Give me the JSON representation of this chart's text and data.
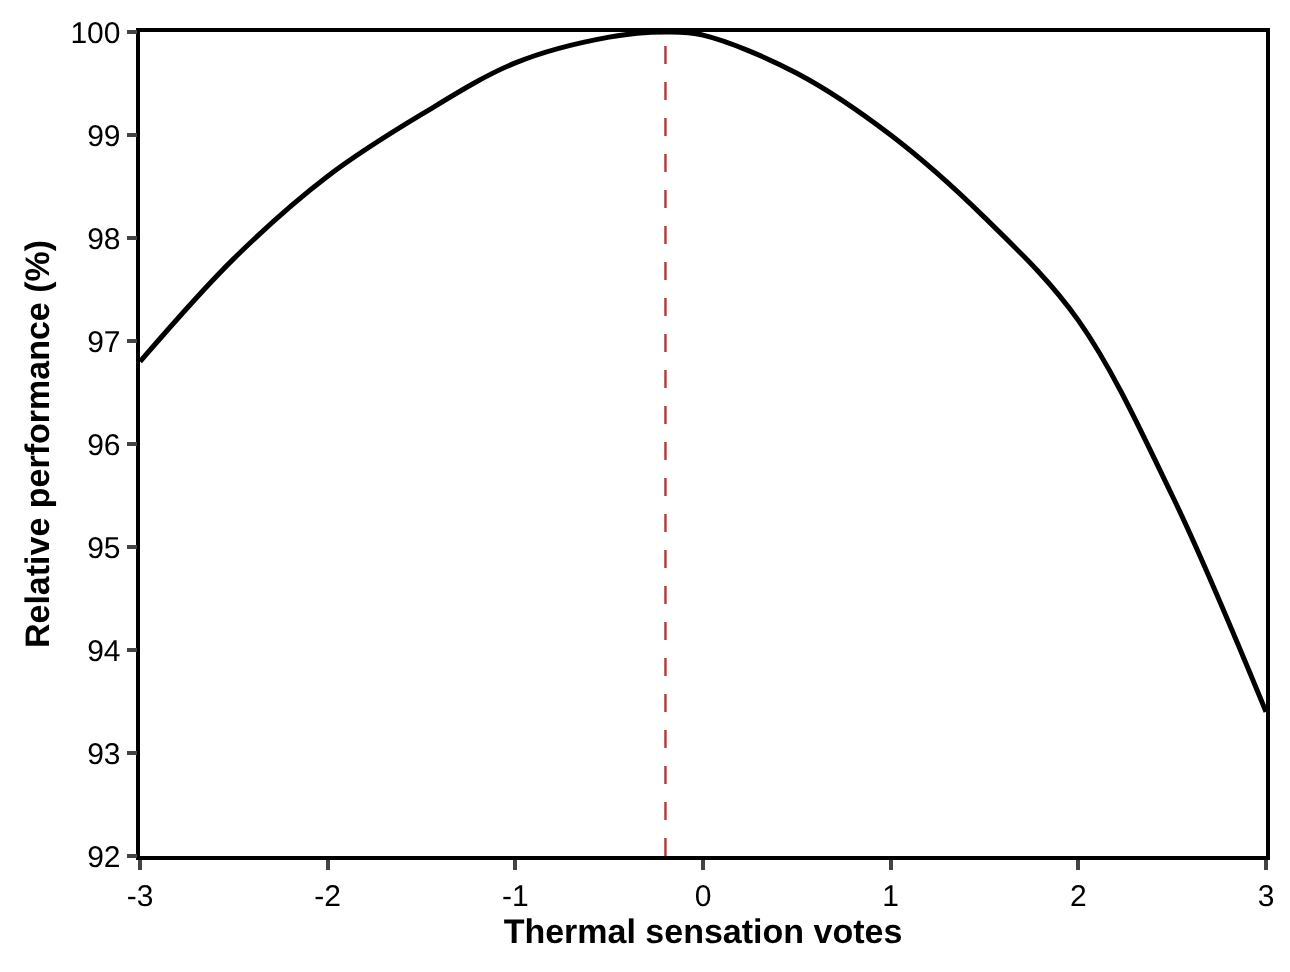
{
  "chart_data": {
    "type": "line",
    "xlabel": "Thermal sensation votes",
    "ylabel": "Relative performance (%)",
    "x": [
      -3,
      -2.5,
      -2,
      -1.5,
      -1,
      -0.5,
      -0.2,
      0,
      0.5,
      1,
      1.5,
      2,
      2.5,
      3
    ],
    "series": [
      {
        "color": "#000000",
        "values": [
          96.8,
          97.8,
          98.6,
          99.2,
          99.7,
          99.95,
          100,
          99.97,
          99.6,
          99.0,
          98.2,
          97.2,
          95.5,
          93.4
        ]
      }
    ],
    "xlim": [
      -3,
      3
    ],
    "xticks": [
      -3,
      -2,
      -1,
      0,
      1,
      2,
      3
    ],
    "ylim": [
      92,
      100
    ],
    "yticks": [
      92,
      93,
      94,
      95,
      96,
      97,
      98,
      99,
      100
    ],
    "ref_lines": [
      {
        "axis": "x",
        "value": -0.2,
        "color": "#b03a3a",
        "line_style": "dashed"
      }
    ],
    "marker": "none",
    "line_style": "solid"
  }
}
